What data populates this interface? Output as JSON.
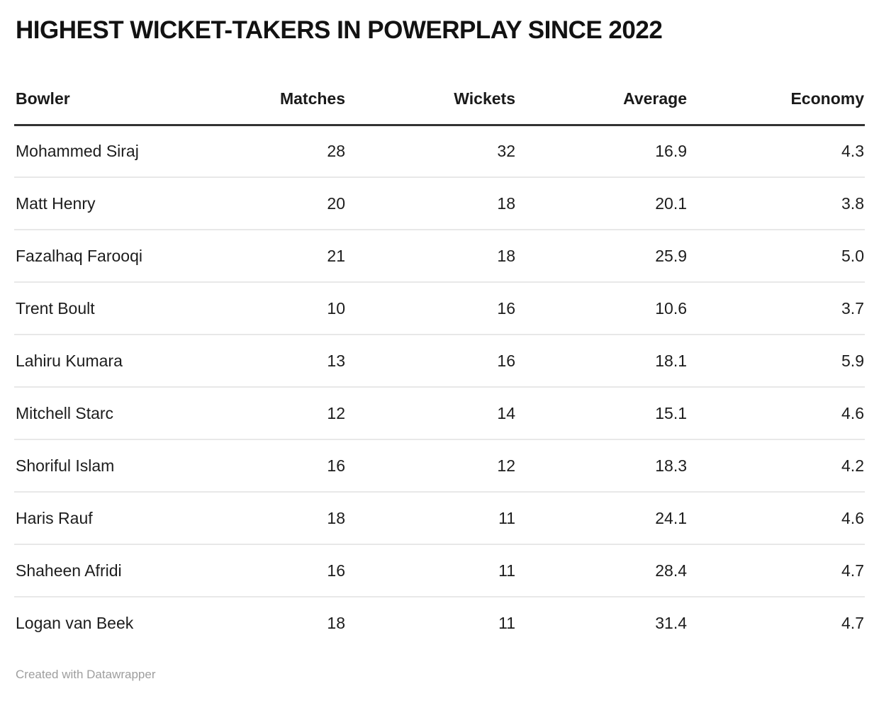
{
  "title": "HIGHEST WICKET-TAKERS IN POWERPLAY SINCE 2022",
  "table": {
    "columns": [
      {
        "key": "bowler",
        "label": "Bowler",
        "align": "left"
      },
      {
        "key": "matches",
        "label": "Matches",
        "align": "right"
      },
      {
        "key": "wickets",
        "label": "Wickets",
        "align": "right"
      },
      {
        "key": "average",
        "label": "Average",
        "align": "right"
      },
      {
        "key": "economy",
        "label": "Economy",
        "align": "right"
      }
    ],
    "rows": [
      [
        "Mohammed Siraj",
        "28",
        "32",
        "16.9",
        "4.3"
      ],
      [
        "Matt Henry",
        "20",
        "18",
        "20.1",
        "3.8"
      ],
      [
        "Fazalhaq Farooqi",
        "21",
        "18",
        "25.9",
        "5.0"
      ],
      [
        "Trent Boult",
        "10",
        "16",
        "10.6",
        "3.7"
      ],
      [
        "Lahiru Kumara",
        "13",
        "16",
        "18.1",
        "5.9"
      ],
      [
        "Mitchell Starc",
        "12",
        "14",
        "15.1",
        "4.6"
      ],
      [
        "Shoriful Islam",
        "16",
        "12",
        "18.3",
        "4.2"
      ],
      [
        "Haris Rauf",
        "18",
        "11",
        "24.1",
        "4.6"
      ],
      [
        "Shaheen Afridi",
        "16",
        "11",
        "28.4",
        "4.7"
      ],
      [
        "Logan van Beek",
        "18",
        "11",
        "31.4",
        "4.7"
      ]
    ]
  },
  "footer": {
    "credit": "Created with Datawrapper"
  },
  "colors": {
    "title_text": "#121212",
    "body_text": "#1d1d1d",
    "header_rule": "#333333",
    "row_rule": "#e8e8e8",
    "credit_text": "#9e9e9e",
    "background": "#ffffff"
  },
  "chart_data": {
    "type": "table",
    "title": "HIGHEST WICKET-TAKERS IN POWERPLAY SINCE 2022",
    "columns": [
      "Bowler",
      "Matches",
      "Wickets",
      "Average",
      "Economy"
    ],
    "rows": [
      [
        "Mohammed Siraj",
        28,
        32,
        16.9,
        4.3
      ],
      [
        "Matt Henry",
        20,
        18,
        20.1,
        3.8
      ],
      [
        "Fazalhaq Farooqi",
        21,
        18,
        25.9,
        5.0
      ],
      [
        "Trent Boult",
        10,
        16,
        10.6,
        3.7
      ],
      [
        "Lahiru Kumara",
        13,
        16,
        18.1,
        5.9
      ],
      [
        "Mitchell Starc",
        12,
        14,
        15.1,
        4.6
      ],
      [
        "Shoriful Islam",
        16,
        12,
        18.3,
        4.2
      ],
      [
        "Haris Rauf",
        18,
        11,
        24.1,
        4.6
      ],
      [
        "Shaheen Afridi",
        16,
        11,
        28.4,
        4.7
      ],
      [
        "Logan van Beek",
        18,
        11,
        31.4,
        4.7
      ]
    ],
    "layout": {
      "numeric_columns_align": "right",
      "header_rule": true,
      "row_rules": true,
      "legend": "none",
      "grid": "horizontal-only"
    }
  }
}
